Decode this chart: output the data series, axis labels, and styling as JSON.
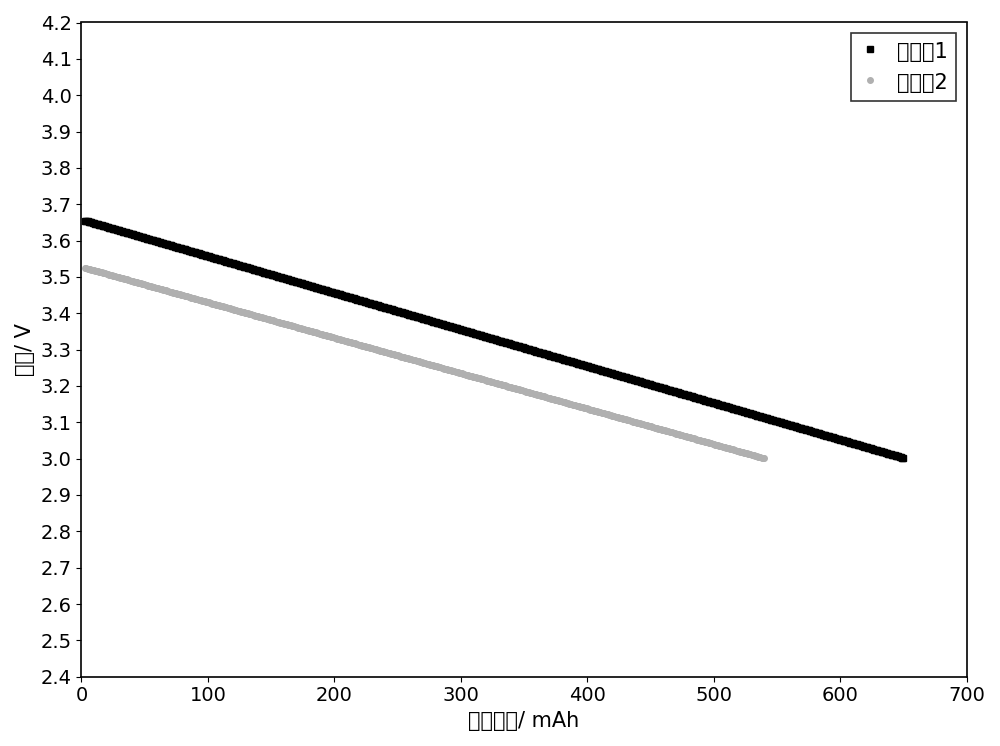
{
  "series1_label": "实施例1",
  "series2_label": "对比例2",
  "series1_color": "#000000",
  "series2_color": "#b0b0b0",
  "series1_marker": "s",
  "series2_marker": "o",
  "series1_x_start": 3,
  "series1_x_end": 650,
  "series1_y_start": 3.655,
  "series1_y_end": 3.002,
  "series2_x_start": 3,
  "series2_x_end": 540,
  "series2_y_start": 3.525,
  "series2_y_end": 3.001,
  "xlabel": "放电容量/ mAh",
  "ylabel": "电压/ V",
  "xlim": [
    0,
    700
  ],
  "ylim": [
    2.4,
    4.2
  ],
  "xticks": [
    0,
    100,
    200,
    300,
    400,
    500,
    600,
    700
  ],
  "yticks": [
    2.4,
    2.5,
    2.6,
    2.7,
    2.8,
    2.9,
    3.0,
    3.1,
    3.2,
    3.3,
    3.4,
    3.5,
    3.6,
    3.7,
    3.8,
    3.9,
    4.0,
    4.1,
    4.2
  ],
  "marker_size": 4,
  "n_points1": 650,
  "n_points2": 540,
  "legend_loc": "upper right",
  "legend_fontsize": 15,
  "axis_fontsize": 15,
  "tick_fontsize": 14,
  "background_color": "#ffffff",
  "figure_width": 10.0,
  "figure_height": 7.46
}
